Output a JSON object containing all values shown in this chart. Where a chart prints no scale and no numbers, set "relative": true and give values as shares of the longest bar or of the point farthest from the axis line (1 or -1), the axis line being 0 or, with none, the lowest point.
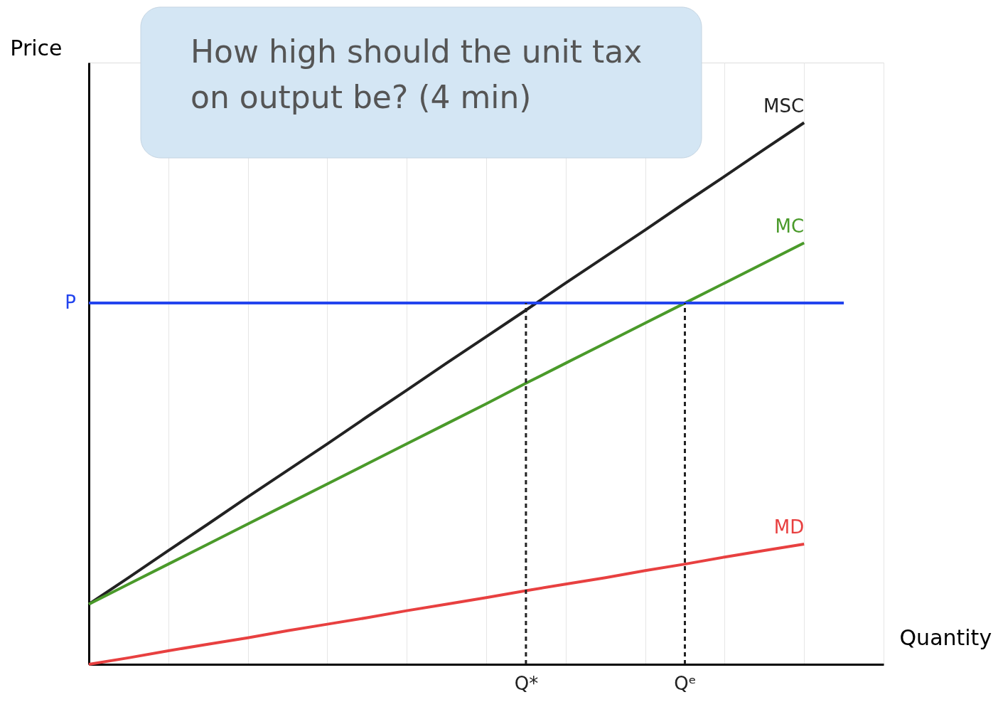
{
  "chart_data": {
    "type": "line",
    "relative": true,
    "xlabel": "Quantity",
    "ylabel": "Price",
    "categories": [
      null,
      null,
      null,
      null,
      null,
      null,
      null,
      null,
      null,
      null,
      null,
      "Q*",
      null,
      null,
      null,
      "Qᵉ",
      null,
      null,
      null,
      null,
      null
    ],
    "grid": true,
    "marker": "none",
    "line_style": "solid",
    "series": [
      {
        "name": "MSC",
        "color": "#222222",
        "values": [
          0.111,
          0.16,
          0.21,
          0.259,
          0.309,
          0.358,
          0.407,
          0.457,
          0.506,
          0.556,
          0.605,
          0.654,
          0.704,
          0.753,
          0.802,
          0.852,
          0.901,
          0.951,
          1.0,
          null,
          null
        ]
      },
      {
        "name": "MC",
        "color": "#4a9a2a",
        "values": [
          0.111,
          0.148,
          0.185,
          0.222,
          0.259,
          0.296,
          0.333,
          0.37,
          0.407,
          0.444,
          0.481,
          0.519,
          0.556,
          0.593,
          0.63,
          0.667,
          0.704,
          0.741,
          0.778,
          null,
          null
        ]
      },
      {
        "name": "MD",
        "color": "#e84040",
        "values": [
          0,
          0.012,
          0.025,
          0.037,
          0.049,
          0.062,
          0.074,
          0.086,
          0.099,
          0.111,
          0.123,
          0.136,
          0.148,
          0.16,
          0.173,
          0.185,
          0.198,
          0.21,
          0.222,
          null,
          null
        ]
      }
    ],
    "ref_lines": [
      {
        "axis": "y",
        "value": 0.667,
        "label": "P",
        "color": "#2244ee",
        "line_style": "solid"
      },
      {
        "axis": "x",
        "value": "Q*",
        "color": "#222222",
        "line_style": "dashed"
      },
      {
        "axis": "x",
        "value": "Qᵉ",
        "color": "#222222",
        "line_style": "dashed"
      }
    ],
    "annotations": [
      "How high should the unit tax\non output be?   (4 min)"
    ]
  }
}
